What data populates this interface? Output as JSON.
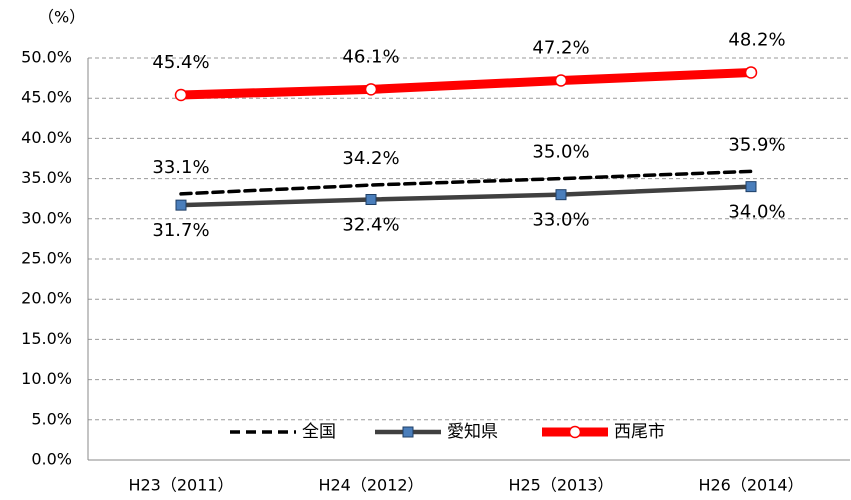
{
  "chart_data": {
    "type": "line",
    "y_label": "（%）",
    "categories": [
      "H23（2011）",
      "H24（2012）",
      "H25（2013）",
      "H26（2014）"
    ],
    "ylim": [
      0,
      50
    ],
    "yticks": [
      {
        "value": 0,
        "label": "0.0%"
      },
      {
        "value": 5,
        "label": "5.0%"
      },
      {
        "value": 10,
        "label": "10.0%"
      },
      {
        "value": 15,
        "label": "15.0%"
      },
      {
        "value": 20,
        "label": "20.0%"
      },
      {
        "value": 25,
        "label": "25.0%"
      },
      {
        "value": 30,
        "label": "30.0%"
      },
      {
        "value": 35,
        "label": "35.0%"
      },
      {
        "value": 40,
        "label": "40.0%"
      },
      {
        "value": 45,
        "label": "45.0%"
      },
      {
        "value": 50,
        "label": "50.0%"
      }
    ],
    "grid": true,
    "legend": "bottom",
    "series": [
      {
        "name": "全国",
        "color": "#000000",
        "values": [
          33.1,
          34.2,
          35.0,
          35.9
        ],
        "value_labels": [
          "33.1%",
          "34.2%",
          "35.0%",
          "35.9%"
        ]
      },
      {
        "name": "愛知県",
        "color": "#404040",
        "values": [
          31.7,
          32.4,
          33.0,
          34.0
        ],
        "value_labels": [
          "31.7%",
          "32.4%",
          "33.0%",
          "34.0%"
        ]
      },
      {
        "name": "西尾市",
        "color": "#ff0000",
        "values": [
          45.4,
          46.1,
          47.2,
          48.2
        ],
        "value_labels": [
          "45.4%",
          "46.1%",
          "47.2%",
          "48.2%"
        ]
      }
    ]
  }
}
